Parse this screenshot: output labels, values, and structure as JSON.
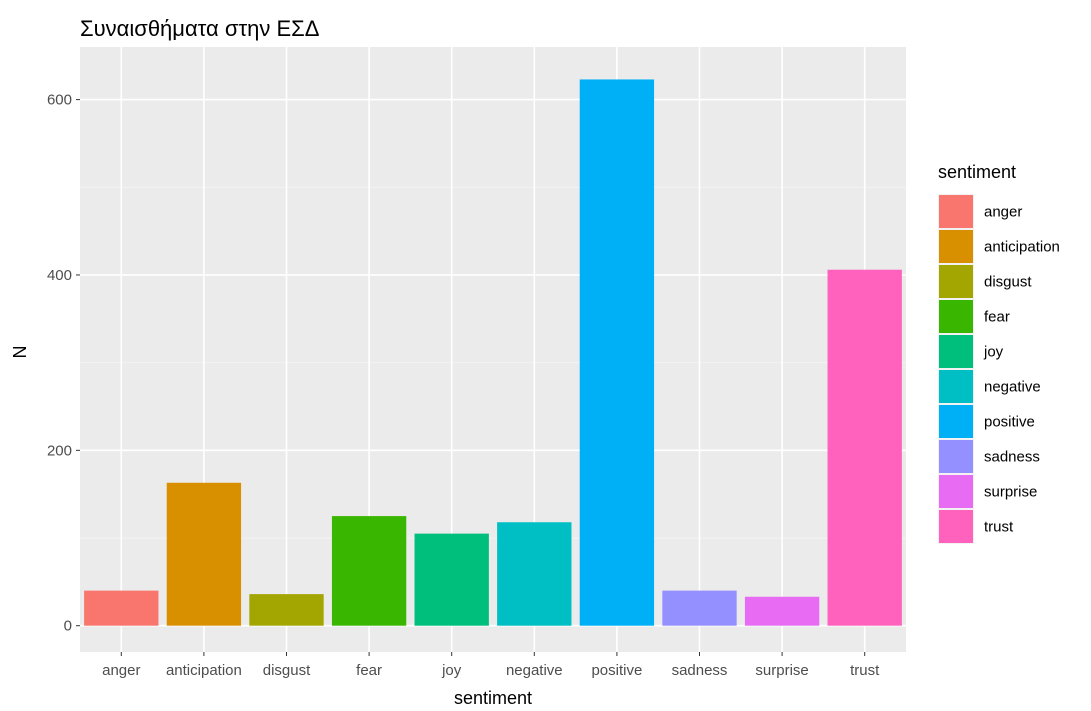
{
  "chart_data": {
    "type": "bar",
    "title": "Συναισθήματα στην ΕΣΔ",
    "xlabel": "sentiment",
    "ylabel": "N",
    "categories": [
      "anger",
      "anticipation",
      "disgust",
      "fear",
      "joy",
      "negative",
      "positive",
      "sadness",
      "surprise",
      "trust"
    ],
    "values": [
      40,
      163,
      36,
      125,
      105,
      118,
      623,
      40,
      33,
      406
    ],
    "colors": [
      "#F8766D",
      "#D89000",
      "#A3A500",
      "#39B600",
      "#00BF7D",
      "#00BFC4",
      "#00B0F6",
      "#9590FF",
      "#E76BF3",
      "#FF62BC"
    ],
    "ylim": [
      -30,
      660
    ],
    "yticks": [
      0,
      200,
      400,
      600
    ],
    "ytick_labels": [
      "0",
      "200",
      "400",
      "600"
    ],
    "grid": true,
    "legend": {
      "title": "sentiment",
      "position": "right",
      "items": [
        "anger",
        "anticipation",
        "disgust",
        "fear",
        "joy",
        "negative",
        "positive",
        "sadness",
        "surprise",
        "trust"
      ]
    }
  }
}
